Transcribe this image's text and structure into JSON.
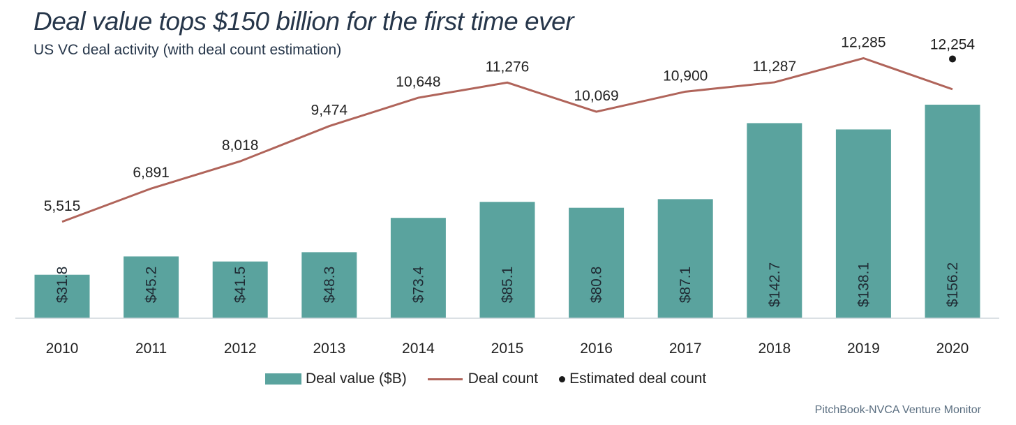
{
  "title": "Deal value tops $150 billion for the first time ever",
  "subtitle": "US VC deal activity (with deal count estimation)",
  "source": "PitchBook-NVCA Venture Monitor",
  "legend": {
    "deal_value": "Deal value ($B)",
    "deal_count": "Deal count",
    "estimated": "Estimated deal count"
  },
  "colors": {
    "bar": "#5aa39e",
    "line": "#b0645a",
    "estimated_dot": "#1a1a1a"
  },
  "chart_data": {
    "type": "bar",
    "categories": [
      "2010",
      "2011",
      "2012",
      "2013",
      "2014",
      "2015",
      "2016",
      "2017",
      "2018",
      "2019",
      "2020"
    ],
    "series": [
      {
        "name": "Deal value ($B)",
        "type": "bar",
        "values": [
          31.8,
          45.2,
          41.5,
          48.3,
          73.4,
          85.1,
          80.8,
          87.1,
          142.7,
          138.1,
          156.2
        ],
        "labels": [
          "$31.8",
          "$45.2",
          "$41.5",
          "$48.3",
          "$73.4",
          "$85.1",
          "$80.8",
          "$87.1",
          "$142.7",
          "$138.1",
          "$156.2"
        ]
      },
      {
        "name": "Deal count",
        "type": "line",
        "values": [
          5515,
          6891,
          8018,
          9474,
          10648,
          11276,
          10069,
          10900,
          11287,
          12285,
          11000
        ],
        "labels": [
          "5,515",
          "6,891",
          "8,018",
          "9,474",
          "10,648",
          "11,276",
          "10,069",
          "10,900",
          "11,287",
          "12,285",
          ""
        ]
      },
      {
        "name": "Estimated deal count",
        "type": "scatter",
        "x": [
          "2020"
        ],
        "values": [
          12254
        ],
        "labels": [
          "12,254"
        ]
      }
    ],
    "legend_position": "bottom",
    "grid": false
  }
}
